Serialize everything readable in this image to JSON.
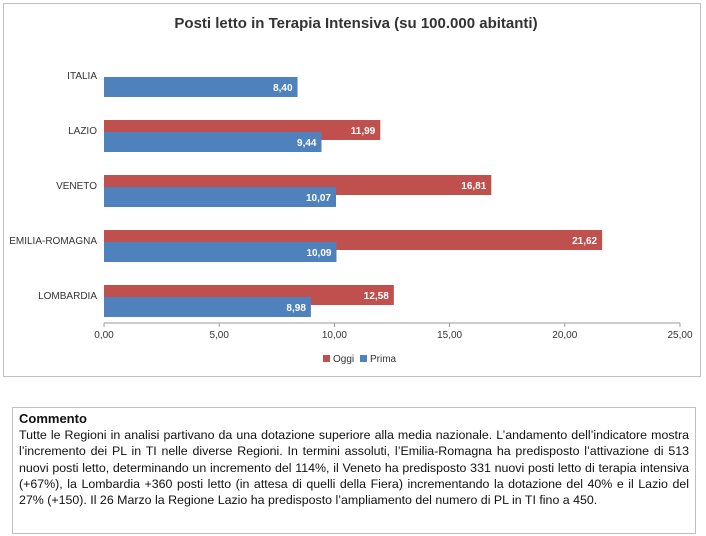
{
  "chart_data": {
    "type": "bar",
    "orientation": "horizontal",
    "title": "Posti letto in Terapia Intensiva (su 100.000 abitanti)",
    "categories": [
      "ITALIA",
      "LAZIO",
      "VENETO",
      "EMILIA-ROMAGNA",
      "LOMBARDIA"
    ],
    "series": [
      {
        "name": "Oggi",
        "color": "#c0504d",
        "values": [
          null,
          11.99,
          16.81,
          21.62,
          12.58
        ],
        "labels": [
          "",
          "11,99",
          "16,81",
          "21,62",
          "12,58"
        ]
      },
      {
        "name": "Prima",
        "color": "#4f81bd",
        "values": [
          8.4,
          9.44,
          10.07,
          10.09,
          8.98
        ],
        "labels": [
          "8,40",
          "9,44",
          "10,07",
          "10,09",
          "8,98"
        ]
      }
    ],
    "xlim": [
      0,
      25
    ],
    "xticks": [
      0,
      5,
      10,
      15,
      20,
      25
    ],
    "xtick_labels": [
      "0,00",
      "5,00",
      "10,00",
      "15,00",
      "20,00",
      "25,00"
    ],
    "legend": "bottom",
    "grid": false
  },
  "comment": {
    "title": "Commento",
    "text": "Tutte le Regioni in analisi partivano da una dotazione superiore alla media nazionale. L’andamento dell’indicatore mostra l’incremento dei PL in TI nelle diverse Regioni. In termini assoluti, l’Emilia-Romagna ha predisposto l’attivazione di 513 nuovi posti letto, determinando un incremento del 114%, il Veneto ha predisposto 331 nuovi posti letto di terapia intensiva (+67%), la Lombardia +360 posti letto (in attesa di quelli della Fiera) incrementando la dotazione del 40% e il Lazio del 27% (+150). Il 26 Marzo la Regione Lazio ha predisposto l’ampliamento del numero di PL in TI fino a 450."
  }
}
